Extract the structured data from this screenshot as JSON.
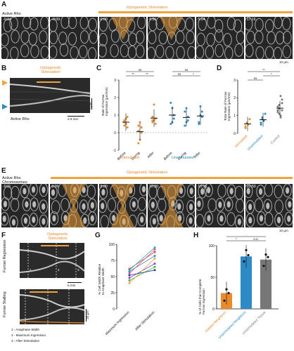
{
  "panels": {
    "a": "A",
    "b": "B",
    "c": "C",
    "d": "D",
    "e": "E",
    "f": "F",
    "g": "G",
    "h": "H"
  },
  "panel_a": {
    "label": "Active Rho",
    "stim_label": "Optogenetic Stimulation",
    "timestamps": [
      "-0:34",
      "-0:09",
      "0:00",
      "4:56",
      "5:04",
      "17:16"
    ],
    "scale": "10 µm"
  },
  "panel_b": {
    "stim_label_1": "Optogenetic",
    "stim_label_2": "Stimulation",
    "label": "Active Rho",
    "scale_v": "5 µm",
    "scale_h": "2.5 min"
  },
  "panel_c": {
    "ylabel_1": "Rate of Furrow",
    "ylabel_2": "Ingression (µm/min)",
    "yticks": [
      "3",
      "2",
      "1",
      "0",
      "-1"
    ],
    "groups": [
      "Stimulated",
      "Unstimulated"
    ],
    "xcats": [
      "Before",
      "During",
      "After"
    ],
    "sig_left": [
      "ns",
      "**",
      "**"
    ],
    "sig_right": [
      "ns",
      "ns",
      "*"
    ]
  },
  "panel_d": {
    "ylabel_1": "Total Rate of Furrow",
    "ylabel_2": "Ingression (µm/min)",
    "yticks": [
      "3",
      "2",
      "1",
      "0"
    ],
    "xcats": [
      "Stimulated",
      "Unstimulated",
      "Control"
    ],
    "sig": [
      "**",
      "*",
      "ns"
    ]
  },
  "panel_e": {
    "label_1": "Active Rho",
    "label_2": "Chromosomes",
    "stim_label": "Optogenetic Stimulation",
    "timestamps": [
      "-0:11",
      "0:00",
      "5:00",
      "10:00",
      "10:16",
      "20:50"
    ],
    "scale": "10 µm"
  },
  "panel_f": {
    "stim_label_1": "Optogenetic",
    "stim_label_2": "Stimulation",
    "row1": "Furrow Regression",
    "row2": "Furrow Stalling",
    "scale_t": "5 min",
    "scale_d": "20 µm",
    "marks": [
      "1",
      "2",
      "3"
    ],
    "legend": [
      "1 - Anaphase Width",
      "2 - Maximum Ingression",
      "3 - After Stimulation"
    ]
  },
  "panel_g": {
    "ylabel_1": "% Cell Width Relative",
    "ylabel_2": "to Anaphase Width",
    "yticks": [
      "100",
      "75",
      "50",
      "25",
      "0"
    ],
    "xcats": [
      "Maximum Ingression",
      "After Stimulation"
    ]
  },
  "panel_h": {
    "ylabel_1": "% of Cells that Complete",
    "ylabel_2": "Furrow Ingression",
    "yticks": [
      "100",
      "50",
      "0"
    ],
    "xcats": [
      "Stimulated Neighbors",
      "Unstimulated Neighbors",
      "Unstimulated Tissue"
    ],
    "sig": [
      "*",
      "*",
      "n.s."
    ]
  },
  "colors": {
    "stimulated": "#e98a2c",
    "unstimulated": "#2d8ac4",
    "control": "#777777",
    "stim_bar": "#f0a23c"
  },
  "chart_data": [
    {
      "type": "scatter",
      "title": "",
      "ylabel": "Rate of Furrow Ingression (µm/min)",
      "ylim": [
        -1,
        3
      ],
      "categories": [
        "Before",
        "During",
        "After",
        "Before",
        "During",
        "After"
      ],
      "series": [
        {
          "name": "Stimulated",
          "values": [
            [
              0.7,
              0.5,
              0.9,
              0.4,
              0.8,
              0.3,
              0.6
            ],
            [
              0.1,
              -0.4,
              0.3,
              -0.6,
              0.6,
              0.0,
              0.4
            ],
            [
              0.6,
              0.7,
              0.5,
              0.9,
              1.6,
              0.8,
              0.7
            ]
          ]
        },
        {
          "name": "Unstimulated",
          "values": [
            [
              0.5,
              1.4,
              0.8,
              1.7,
              0.6,
              1.0
            ],
            [
              1.2,
              0.6,
              0.9,
              0.4,
              1.4,
              0.7
            ],
            [
              0.6,
              1.5,
              0.9,
              0.5,
              1.0,
              1.2
            ]
          ]
        }
      ]
    },
    {
      "type": "scatter",
      "ylabel": "Total Rate of Furrow Ingression (µm/min)",
      "ylim": [
        0,
        3
      ],
      "categories": [
        "Stimulated",
        "Unstimulated",
        "Control"
      ],
      "values": [
        [
          0.4,
          0.6,
          0.5,
          0.8,
          0.3,
          0.6
        ],
        [
          0.6,
          0.9,
          0.7,
          1.1,
          0.5,
          0.8
        ],
        [
          1.3,
          1.6,
          1.0,
          1.9,
          1.2,
          1.4,
          0.9,
          1.7,
          1.5,
          1.1,
          2.1,
          1.3
        ]
      ]
    },
    {
      "type": "line",
      "ylabel": "% Cell Width Relative to Anaphase Width",
      "ylim": [
        0,
        100
      ],
      "x": [
        "Maximum Ingression",
        "After Stimulation"
      ],
      "series": [
        {
          "values": [
            62,
            88
          ]
        },
        {
          "values": [
            58,
            82
          ]
        },
        {
          "values": [
            55,
            92
          ]
        },
        {
          "values": [
            48,
            70
          ]
        },
        {
          "values": [
            44,
            65
          ]
        },
        {
          "values": [
            40,
            78
          ]
        },
        {
          "values": [
            52,
            60
          ]
        },
        {
          "values": [
            60,
            95
          ]
        }
      ]
    },
    {
      "type": "bar",
      "ylabel": "% of Cells that Complete Furrow Ingression",
      "ylim": [
        0,
        100
      ],
      "categories": [
        "Stimulated Neighbors",
        "Unstimulated Neighbors",
        "Unstimulated Tissue"
      ],
      "values": [
        25,
        83,
        78
      ]
    }
  ]
}
